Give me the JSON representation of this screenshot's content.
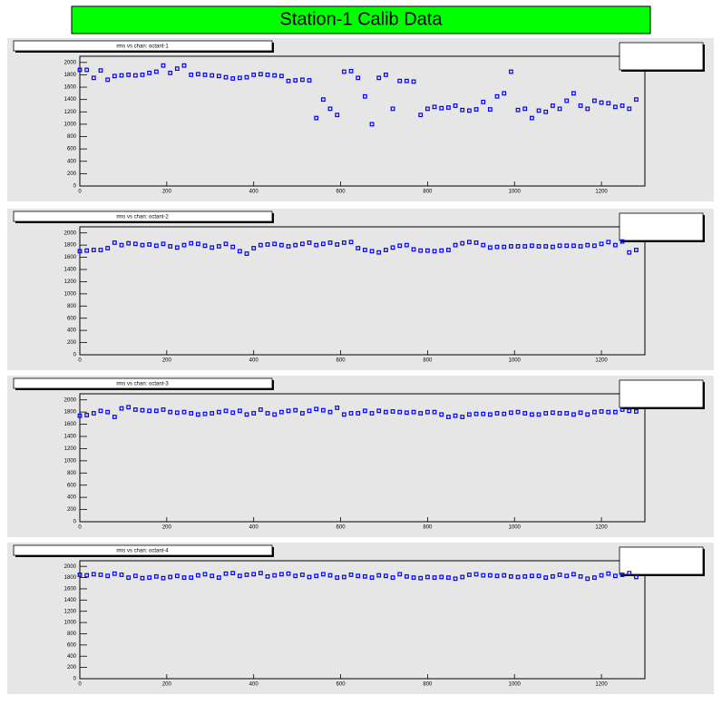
{
  "page_title": "Station-1 Calib Data",
  "chart_data": [
    {
      "type": "scatter",
      "title": "rms vs chan: octant-1",
      "color": "#0000ff",
      "xlim": [
        0,
        1300
      ],
      "xticks": [
        0,
        200,
        400,
        600,
        800,
        1000,
        1200
      ],
      "ylim": [
        0,
        2100
      ],
      "yticks": [
        0,
        200,
        400,
        600,
        800,
        1000,
        1200,
        1400,
        1600,
        1800,
        2000
      ],
      "x": [
        0,
        16,
        32,
        48,
        64,
        80,
        96,
        112,
        128,
        144,
        160,
        176,
        192,
        208,
        224,
        240,
        256,
        272,
        288,
        304,
        320,
        336,
        352,
        368,
        384,
        400,
        416,
        432,
        448,
        464,
        480,
        496,
        512,
        528,
        544,
        560,
        576,
        592,
        608,
        624,
        640,
        656,
        672,
        688,
        704,
        720,
        736,
        752,
        768,
        784,
        800,
        816,
        832,
        848,
        864,
        880,
        896,
        912,
        928,
        944,
        960,
        976,
        992,
        1008,
        1024,
        1040,
        1056,
        1072,
        1088,
        1104,
        1120,
        1136,
        1152,
        1168,
        1184,
        1200,
        1216,
        1232,
        1248,
        1264,
        1280
      ],
      "values": [
        1880,
        1880,
        1750,
        1870,
        1720,
        1780,
        1790,
        1800,
        1790,
        1800,
        1830,
        1850,
        1950,
        1830,
        1900,
        1950,
        1800,
        1810,
        1800,
        1790,
        1780,
        1760,
        1740,
        1750,
        1760,
        1800,
        1810,
        1800,
        1790,
        1780,
        1700,
        1710,
        1720,
        1710,
        1100,
        1400,
        1250,
        1150,
        1850,
        1860,
        1750,
        1450,
        1000,
        1750,
        1800,
        1250,
        1700,
        1700,
        1690,
        1150,
        1250,
        1280,
        1260,
        1270,
        1300,
        1230,
        1220,
        1240,
        1360,
        1240,
        1450,
        1500,
        1850,
        1230,
        1250,
        1100,
        1220,
        1200,
        1300,
        1250,
        1380,
        1500,
        1300,
        1250,
        1380,
        1350,
        1340,
        1280,
        1300,
        1250,
        1400
      ]
    },
    {
      "type": "scatter",
      "title": "rms vs chan: octant-2",
      "color": "#0000ff",
      "xlim": [
        0,
        1300
      ],
      "xticks": [
        0,
        200,
        400,
        600,
        800,
        1000,
        1200
      ],
      "ylim": [
        0,
        2100
      ],
      "yticks": [
        0,
        200,
        400,
        600,
        800,
        1000,
        1200,
        1400,
        1600,
        1800,
        2000
      ],
      "x": [
        0,
        16,
        32,
        48,
        64,
        80,
        96,
        112,
        128,
        144,
        160,
        176,
        192,
        208,
        224,
        240,
        256,
        272,
        288,
        304,
        320,
        336,
        352,
        368,
        384,
        400,
        416,
        432,
        448,
        464,
        480,
        496,
        512,
        528,
        544,
        560,
        576,
        592,
        608,
        624,
        640,
        656,
        672,
        688,
        704,
        720,
        736,
        752,
        768,
        784,
        800,
        816,
        832,
        848,
        864,
        880,
        896,
        912,
        928,
        944,
        960,
        976,
        992,
        1008,
        1024,
        1040,
        1056,
        1072,
        1088,
        1104,
        1120,
        1136,
        1152,
        1168,
        1184,
        1200,
        1216,
        1232,
        1248,
        1264,
        1280
      ],
      "values": [
        1700,
        1710,
        1720,
        1720,
        1750,
        1840,
        1800,
        1830,
        1820,
        1800,
        1810,
        1790,
        1820,
        1780,
        1760,
        1800,
        1830,
        1820,
        1790,
        1760,
        1780,
        1820,
        1770,
        1700,
        1660,
        1750,
        1800,
        1810,
        1820,
        1800,
        1780,
        1800,
        1820,
        1840,
        1800,
        1820,
        1840,
        1810,
        1840,
        1850,
        1750,
        1720,
        1700,
        1680,
        1720,
        1760,
        1790,
        1800,
        1730,
        1710,
        1710,
        1700,
        1710,
        1720,
        1800,
        1830,
        1850,
        1840,
        1800,
        1760,
        1770,
        1770,
        1780,
        1780,
        1780,
        1790,
        1780,
        1780,
        1770,
        1790,
        1790,
        1790,
        1780,
        1800,
        1790,
        1820,
        1850,
        1800,
        1860,
        1680,
        1720
      ]
    },
    {
      "type": "scatter",
      "title": "rms vs chan: octant-3",
      "color": "#0000ff",
      "xlim": [
        0,
        1300
      ],
      "xticks": [
        0,
        200,
        400,
        600,
        800,
        1000,
        1200
      ],
      "ylim": [
        0,
        2100
      ],
      "yticks": [
        0,
        200,
        400,
        600,
        800,
        1000,
        1200,
        1400,
        1600,
        1800,
        2000
      ],
      "x": [
        0,
        16,
        32,
        48,
        64,
        80,
        96,
        112,
        128,
        144,
        160,
        176,
        192,
        208,
        224,
        240,
        256,
        272,
        288,
        304,
        320,
        336,
        352,
        368,
        384,
        400,
        416,
        432,
        448,
        464,
        480,
        496,
        512,
        528,
        544,
        560,
        576,
        592,
        608,
        624,
        640,
        656,
        672,
        688,
        704,
        720,
        736,
        752,
        768,
        784,
        800,
        816,
        832,
        848,
        864,
        880,
        896,
        912,
        928,
        944,
        960,
        976,
        992,
        1008,
        1024,
        1040,
        1056,
        1072,
        1088,
        1104,
        1120,
        1136,
        1152,
        1168,
        1184,
        1200,
        1216,
        1232,
        1248,
        1264,
        1280
      ],
      "values": [
        1740,
        1750,
        1780,
        1820,
        1800,
        1720,
        1860,
        1880,
        1840,
        1830,
        1820,
        1820,
        1840,
        1800,
        1790,
        1800,
        1780,
        1760,
        1770,
        1780,
        1800,
        1820,
        1790,
        1820,
        1760,
        1780,
        1840,
        1780,
        1760,
        1800,
        1820,
        1830,
        1780,
        1820,
        1850,
        1830,
        1800,
        1870,
        1760,
        1780,
        1780,
        1820,
        1780,
        1820,
        1800,
        1810,
        1800,
        1790,
        1800,
        1780,
        1800,
        1800,
        1760,
        1720,
        1740,
        1720,
        1760,
        1770,
        1770,
        1760,
        1780,
        1770,
        1790,
        1800,
        1780,
        1760,
        1760,
        1780,
        1790,
        1780,
        1780,
        1760,
        1790,
        1760,
        1800,
        1810,
        1800,
        1800,
        1840,
        1820,
        1810
      ]
    },
    {
      "type": "scatter",
      "title": "rms vs chan: octant-4",
      "color": "#0000ff",
      "xlim": [
        0,
        1300
      ],
      "xticks": [
        0,
        200,
        400,
        600,
        800,
        1000,
        1200
      ],
      "ylim": [
        0,
        2100
      ],
      "yticks": [
        0,
        200,
        400,
        600,
        800,
        1000,
        1200,
        1400,
        1600,
        1800,
        2000
      ],
      "x": [
        0,
        16,
        32,
        48,
        64,
        80,
        96,
        112,
        128,
        144,
        160,
        176,
        192,
        208,
        224,
        240,
        256,
        272,
        288,
        304,
        320,
        336,
        352,
        368,
        384,
        400,
        416,
        432,
        448,
        464,
        480,
        496,
        512,
        528,
        544,
        560,
        576,
        592,
        608,
        624,
        640,
        656,
        672,
        688,
        704,
        720,
        736,
        752,
        768,
        784,
        800,
        816,
        832,
        848,
        864,
        880,
        896,
        912,
        928,
        944,
        960,
        976,
        992,
        1008,
        1024,
        1040,
        1056,
        1072,
        1088,
        1104,
        1120,
        1136,
        1152,
        1168,
        1184,
        1200,
        1216,
        1232,
        1248,
        1264,
        1280
      ],
      "values": [
        1850,
        1840,
        1860,
        1850,
        1830,
        1870,
        1850,
        1800,
        1830,
        1790,
        1800,
        1820,
        1790,
        1810,
        1830,
        1800,
        1800,
        1840,
        1860,
        1830,
        1800,
        1870,
        1880,
        1830,
        1850,
        1860,
        1880,
        1820,
        1840,
        1860,
        1870,
        1830,
        1850,
        1810,
        1830,
        1860,
        1840,
        1800,
        1810,
        1850,
        1830,
        1820,
        1800,
        1840,
        1830,
        1800,
        1860,
        1820,
        1800,
        1790,
        1810,
        1800,
        1810,
        1800,
        1780,
        1810,
        1850,
        1860,
        1840,
        1840,
        1830,
        1840,
        1820,
        1810,
        1820,
        1830,
        1830,
        1800,
        1820,
        1850,
        1830,
        1860,
        1820,
        1780,
        1800,
        1840,
        1870,
        1830,
        1850,
        1880,
        1810
      ]
    }
  ]
}
